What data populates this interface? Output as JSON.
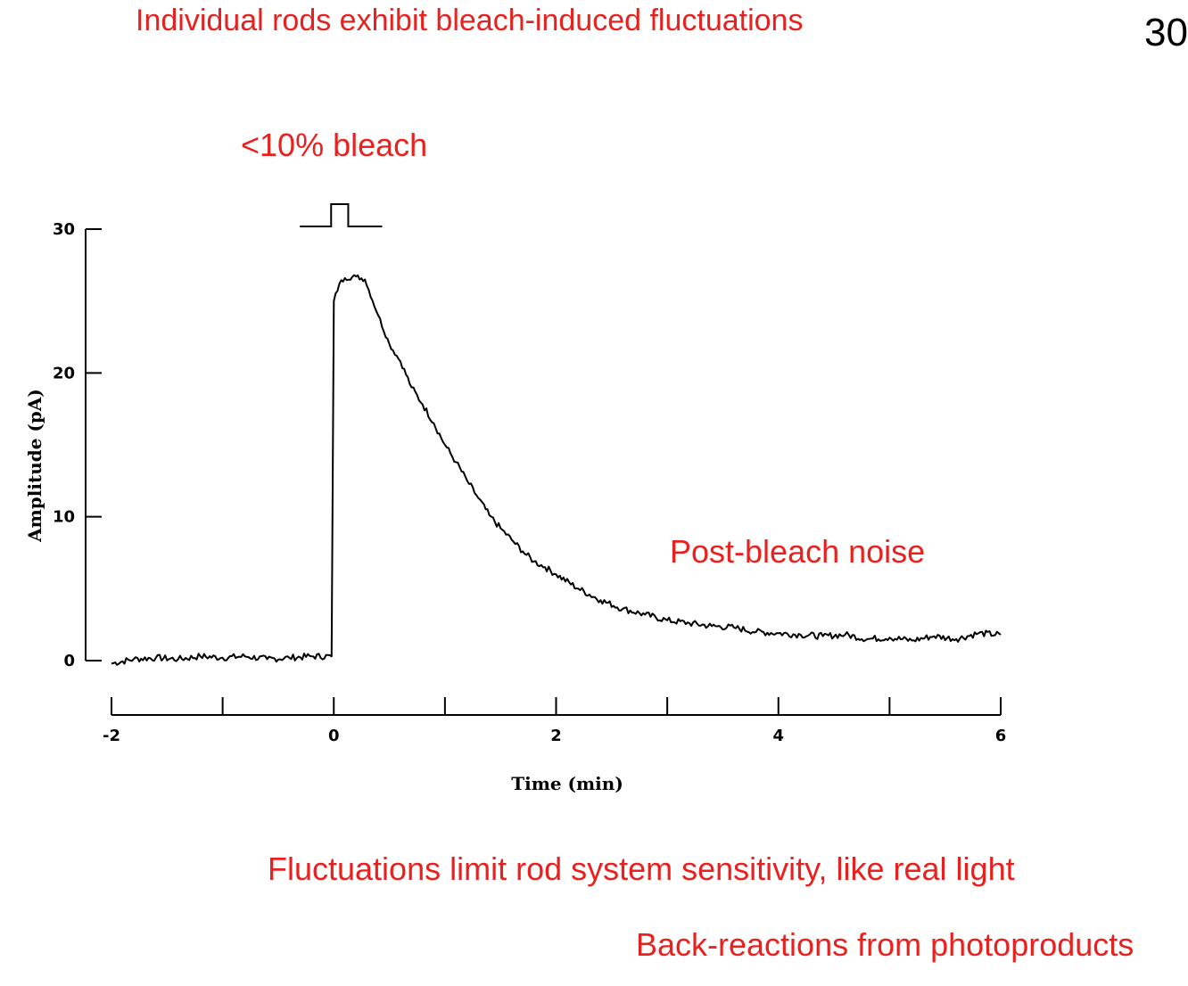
{
  "slide": {
    "title": "Individual rods exhibit bleach-induced fluctuations",
    "number": "30",
    "bleach_label": "<10% bleach",
    "noise_label": "Post-bleach noise",
    "notes": [
      "Fluctuations limit rod system sensitivity, like real light",
      "Back-reactions from photoproducts"
    ]
  },
  "chart_data": {
    "type": "line",
    "xlabel": "Time (min)",
    "ylabel": "Amplitude (pA)",
    "xlim": [
      -2,
      6
    ],
    "ylim": [
      0,
      30
    ],
    "x_ticks": [
      -2,
      -1,
      0,
      1,
      2,
      3,
      4,
      5,
      6
    ],
    "x_tick_labels": [
      "-2",
      "0",
      "2",
      "4",
      "6"
    ],
    "y_ticks": [
      0,
      10,
      20,
      30
    ],
    "y_tick_labels": [
      "0",
      "10",
      "20",
      "30"
    ],
    "grid": false,
    "stimulus": {
      "on": 0.0,
      "off": 0.13
    },
    "series": [
      {
        "x": [
          -2.0,
          -1.8,
          -1.6,
          -1.4,
          -1.2,
          -1.0,
          -0.8,
          -0.6,
          -0.4,
          -0.2,
          -0.02,
          0.0,
          0.05,
          0.1,
          0.2,
          0.28,
          0.4,
          0.5,
          0.6,
          0.7,
          0.8,
          0.9,
          1.0,
          1.1,
          1.2,
          1.3,
          1.4,
          1.5,
          1.6,
          1.7,
          1.8,
          1.9,
          2.0,
          2.2,
          2.4,
          2.6,
          2.8,
          3.0,
          3.2,
          3.4,
          3.6,
          3.8,
          4.0,
          4.2,
          4.4,
          4.6,
          4.8,
          5.0,
          5.2,
          5.4,
          5.6,
          5.8,
          6.0
        ],
        "y": [
          -0.2,
          0.1,
          0.2,
          0.1,
          0.3,
          0.2,
          0.3,
          0.1,
          0.2,
          0.3,
          0.3,
          25.0,
          26.2,
          26.6,
          26.7,
          26.5,
          24.0,
          22.0,
          20.8,
          19.0,
          17.8,
          16.5,
          15.0,
          13.8,
          12.5,
          11.3,
          10.1,
          9.2,
          8.4,
          7.6,
          6.9,
          6.5,
          6.0,
          5.0,
          4.2,
          3.6,
          3.2,
          2.8,
          2.6,
          2.4,
          2.3,
          2.0,
          1.9,
          1.8,
          1.7,
          1.8,
          1.5,
          1.6,
          1.4,
          1.7,
          1.5,
          1.9,
          1.8
        ]
      }
    ]
  }
}
